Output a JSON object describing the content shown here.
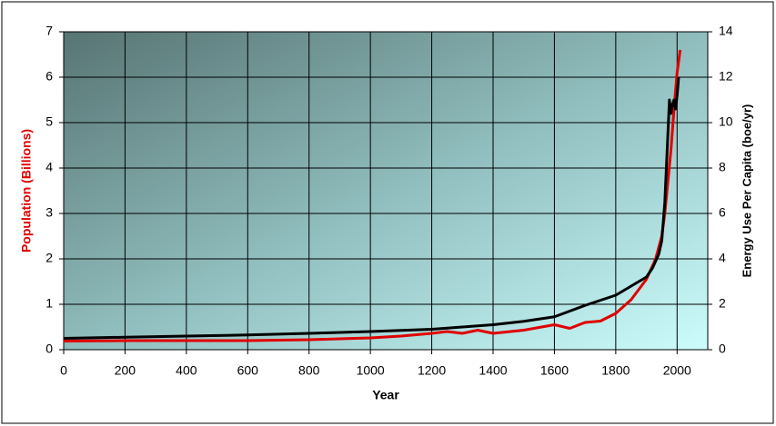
{
  "chart_data": {
    "type": "line",
    "x_label": "Year",
    "y_label": "Population (Billions)",
    "y2_label": "Energy Use Per Capita (boe/yr)",
    "y_label_color": "#e00000",
    "xlim": [
      0,
      2100
    ],
    "xticks": [
      0,
      200,
      400,
      600,
      800,
      1000,
      1200,
      1400,
      1600,
      1800,
      2000
    ],
    "ylim": [
      0,
      7
    ],
    "yticks": [
      0,
      1,
      2,
      3,
      4,
      5,
      6,
      7
    ],
    "y2lim": [
      0,
      14
    ],
    "y2ticks": [
      0,
      2,
      4,
      6,
      8,
      10,
      12,
      14
    ],
    "grid": true,
    "series": [
      {
        "color": "#e00000",
        "axis": "y",
        "x": [
          0,
          200,
          400,
          600,
          800,
          1000,
          1100,
          1200,
          1250,
          1300,
          1350,
          1400,
          1500,
          1600,
          1650,
          1700,
          1750,
          1800,
          1850,
          1900,
          1930,
          1950,
          1960,
          1970,
          1980,
          1990,
          2000,
          2010
        ],
        "values": [
          0.19,
          0.2,
          0.2,
          0.2,
          0.22,
          0.26,
          0.3,
          0.36,
          0.4,
          0.36,
          0.43,
          0.36,
          0.43,
          0.55,
          0.47,
          0.6,
          0.63,
          0.8,
          1.1,
          1.55,
          2.0,
          2.5,
          3.0,
          3.7,
          4.4,
          5.3,
          6.1,
          6.6
        ]
      },
      {
        "color": "#000000",
        "axis": "y2",
        "x": [
          0,
          200,
          400,
          600,
          800,
          1000,
          1200,
          1300,
          1400,
          1500,
          1600,
          1650,
          1700,
          1800,
          1850,
          1900,
          1920,
          1940,
          1950,
          1960,
          1970,
          1975,
          1980,
          1985,
          1990,
          1995,
          2000,
          2005
        ],
        "values": [
          0.5,
          0.55,
          0.6,
          0.65,
          0.72,
          0.8,
          0.9,
          1.0,
          1.1,
          1.25,
          1.45,
          1.7,
          1.95,
          2.4,
          2.8,
          3.2,
          3.6,
          4.2,
          4.8,
          6.5,
          9.5,
          11.0,
          10.4,
          10.8,
          11.0,
          10.6,
          11.2,
          12.0
        ]
      }
    ]
  }
}
